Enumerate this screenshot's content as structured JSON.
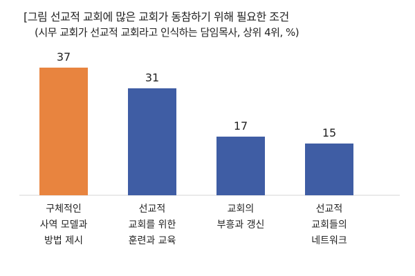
{
  "chart_data": {
    "type": "bar",
    "title_line1": "[그림 선교적 교회에 많은 교회가 동참하기 위해 필요한 조건",
    "title_line2": "(시무 교회가 선교적 교회라고 인식하는 담임목사, 상위 4위, %)",
    "categories": [
      [
        "구체적인",
        "사역 모델과",
        "방법 제시"
      ],
      [
        "선교적",
        "교회를 위한",
        "훈련과 교육"
      ],
      [
        "교회의",
        "부흥과 갱신"
      ],
      [
        "선교적",
        "교회들의",
        "네트워크"
      ]
    ],
    "values": [
      37,
      31,
      17,
      15
    ],
    "colors": [
      "#e8843f",
      "#3f5da4",
      "#3f5da4",
      "#3f5da4"
    ],
    "ylim": [
      0,
      40
    ],
    "xlabel": "",
    "ylabel": ""
  }
}
